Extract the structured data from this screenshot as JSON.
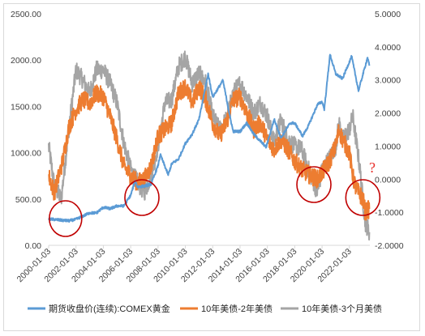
{
  "chart_data": {
    "type": "line",
    "title": "",
    "xlabel": "",
    "ylabel": "",
    "x_tick_labels": [
      "2000-01-03",
      "2002-01-03",
      "2004-01-03",
      "2006-01-03",
      "2008-01-03",
      "2010-01-03",
      "2012-01-03",
      "2014-01-03",
      "2016-01-03",
      "2018-01-03",
      "2020-01-03",
      "2022-01-03"
    ],
    "y_left": {
      "lim": [
        0,
        2500
      ],
      "tick_labels": [
        "0.00",
        "500.00",
        "1000.00",
        "1500.00",
        "2000.00",
        "2500.00"
      ]
    },
    "y_right": {
      "lim": [
        -2,
        5
      ],
      "tick_labels": [
        "-2.0000",
        "-1.0000",
        "0.0000",
        "1.0000",
        "2.0000",
        "3.0000",
        "4.0000",
        "5.0000"
      ]
    },
    "grid": false,
    "legend_position": "bottom",
    "series": [
      {
        "name": "期货收盘价(连续):COMEX黄金",
        "axis": "left",
        "color": "#5b9bd5",
        "points": [
          [
            "2000-01-03",
            285
          ],
          [
            "2001-01-03",
            270
          ],
          [
            "2001-07-03",
            265
          ],
          [
            "2002-01-03",
            280
          ],
          [
            "2002-07-03",
            315
          ],
          [
            "2003-01-03",
            350
          ],
          [
            "2003-07-03",
            350
          ],
          [
            "2004-01-03",
            410
          ],
          [
            "2004-07-03",
            395
          ],
          [
            "2005-01-03",
            425
          ],
          [
            "2005-07-03",
            425
          ],
          [
            "2006-01-03",
            540
          ],
          [
            "2006-05-03",
            700
          ],
          [
            "2006-07-03",
            630
          ],
          [
            "2007-01-03",
            640
          ],
          [
            "2007-07-03",
            660
          ],
          [
            "2008-01-03",
            860
          ],
          [
            "2008-03-03",
            980
          ],
          [
            "2008-10-03",
            760
          ],
          [
            "2009-01-03",
            880
          ],
          [
            "2009-07-03",
            930
          ],
          [
            "2010-01-03",
            1100
          ],
          [
            "2010-07-03",
            1200
          ],
          [
            "2011-01-03",
            1360
          ],
          [
            "2011-09-03",
            1850
          ],
          [
            "2012-01-03",
            1600
          ],
          [
            "2012-10-03",
            1780
          ],
          [
            "2013-04-03",
            1400
          ],
          [
            "2013-07-03",
            1230
          ],
          [
            "2014-01-03",
            1230
          ],
          [
            "2014-07-03",
            1320
          ],
          [
            "2015-01-03",
            1200
          ],
          [
            "2015-12-03",
            1060
          ],
          [
            "2016-07-03",
            1360
          ],
          [
            "2017-01-03",
            1160
          ],
          [
            "2017-09-03",
            1320
          ],
          [
            "2018-01-03",
            1320
          ],
          [
            "2018-08-03",
            1180
          ],
          [
            "2019-01-03",
            1290
          ],
          [
            "2019-09-03",
            1520
          ],
          [
            "2020-01-03",
            1550
          ],
          [
            "2020-03-03",
            1470
          ],
          [
            "2020-08-03",
            2060
          ],
          [
            "2021-01-03",
            1850
          ],
          [
            "2021-07-03",
            1800
          ],
          [
            "2022-03-03",
            2040
          ],
          [
            "2022-09-03",
            1670
          ],
          [
            "2023-01-03",
            1850
          ],
          [
            "2023-05-03",
            2030
          ],
          [
            "2023-06-20",
            1940
          ]
        ]
      },
      {
        "name": "10年美债-2年美债",
        "axis": "right",
        "color": "#ed7d31",
        "points": [
          [
            "2000-01-03",
            0.1
          ],
          [
            "2000-06-03",
            -0.4
          ],
          [
            "2001-01-03",
            0.5
          ],
          [
            "2001-07-03",
            1.6
          ],
          [
            "2002-01-03",
            2.1
          ],
          [
            "2002-07-03",
            2.4
          ],
          [
            "2003-01-03",
            2.3
          ],
          [
            "2003-07-03",
            2.6
          ],
          [
            "2004-01-03",
            2.5
          ],
          [
            "2004-07-03",
            1.9
          ],
          [
            "2005-01-03",
            1.2
          ],
          [
            "2005-07-03",
            0.4
          ],
          [
            "2006-01-03",
            0.1
          ],
          [
            "2006-07-03",
            -0.1
          ],
          [
            "2007-01-03",
            0.0
          ],
          [
            "2007-07-03",
            0.4
          ],
          [
            "2008-01-03",
            1.3
          ],
          [
            "2008-07-03",
            1.5
          ],
          [
            "2009-01-03",
            1.7
          ],
          [
            "2009-07-03",
            2.6
          ],
          [
            "2010-01-03",
            2.8
          ],
          [
            "2010-07-03",
            2.3
          ],
          [
            "2011-01-03",
            2.8
          ],
          [
            "2011-07-03",
            2.4
          ],
          [
            "2012-01-03",
            1.7
          ],
          [
            "2012-07-03",
            1.3
          ],
          [
            "2013-01-03",
            1.7
          ],
          [
            "2013-07-03",
            2.4
          ],
          [
            "2014-01-03",
            2.5
          ],
          [
            "2014-07-03",
            2.0
          ],
          [
            "2015-01-03",
            1.5
          ],
          [
            "2015-07-03",
            1.7
          ],
          [
            "2016-01-03",
            1.2
          ],
          [
            "2016-07-03",
            0.9
          ],
          [
            "2017-01-03",
            1.2
          ],
          [
            "2017-07-03",
            0.9
          ],
          [
            "2018-01-03",
            0.55
          ],
          [
            "2018-07-03",
            0.3
          ],
          [
            "2019-01-03",
            0.15
          ],
          [
            "2019-09-03",
            0.0
          ],
          [
            "2020-01-03",
            0.2
          ],
          [
            "2020-07-03",
            0.5
          ],
          [
            "2021-01-03",
            1.0
          ],
          [
            "2021-04-03",
            1.5
          ],
          [
            "2021-07-03",
            1.2
          ],
          [
            "2022-01-03",
            0.8
          ],
          [
            "2022-04-03",
            0.1
          ],
          [
            "2022-07-03",
            -0.3
          ],
          [
            "2023-01-03",
            -0.6
          ],
          [
            "2023-03-03",
            -1.0
          ],
          [
            "2023-06-20",
            -0.9
          ]
        ]
      },
      {
        "name": "10年美债-3个月美债",
        "axis": "right",
        "color": "#a5a5a5",
        "points": [
          [
            "2000-01-03",
            1.0
          ],
          [
            "2000-06-03",
            -0.2
          ],
          [
            "2000-12-03",
            -0.6
          ],
          [
            "2001-07-03",
            1.6
          ],
          [
            "2002-01-03",
            3.3
          ],
          [
            "2002-07-03",
            3.0
          ],
          [
            "2003-01-03",
            2.6
          ],
          [
            "2003-07-03",
            3.3
          ],
          [
            "2004-01-03",
            3.3
          ],
          [
            "2004-07-03",
            2.9
          ],
          [
            "2005-01-03",
            2.3
          ],
          [
            "2005-07-03",
            1.1
          ],
          [
            "2006-01-03",
            0.3
          ],
          [
            "2006-07-03",
            -0.1
          ],
          [
            "2007-01-03",
            -0.4
          ],
          [
            "2007-07-03",
            0.1
          ],
          [
            "2008-01-03",
            1.0
          ],
          [
            "2008-07-03",
            2.3
          ],
          [
            "2009-01-03",
            2.4
          ],
          [
            "2009-07-03",
            3.4
          ],
          [
            "2010-01-03",
            3.7
          ],
          [
            "2010-07-03",
            2.9
          ],
          [
            "2011-01-03",
            3.2
          ],
          [
            "2011-07-03",
            2.9
          ],
          [
            "2012-01-03",
            1.9
          ],
          [
            "2012-07-03",
            1.5
          ],
          [
            "2013-01-03",
            1.8
          ],
          [
            "2013-07-03",
            2.6
          ],
          [
            "2014-01-03",
            2.9
          ],
          [
            "2014-07-03",
            2.5
          ],
          [
            "2015-01-03",
            2.0
          ],
          [
            "2015-07-03",
            2.3
          ],
          [
            "2016-01-03",
            1.9
          ],
          [
            "2016-07-03",
            1.1
          ],
          [
            "2017-01-03",
            1.8
          ],
          [
            "2017-07-03",
            1.2
          ],
          [
            "2018-01-03",
            1.0
          ],
          [
            "2018-07-03",
            0.9
          ],
          [
            "2019-01-03",
            0.3
          ],
          [
            "2019-09-03",
            -0.4
          ],
          [
            "2020-01-03",
            0.3
          ],
          [
            "2020-07-03",
            0.6
          ],
          [
            "2021-01-03",
            1.0
          ],
          [
            "2021-04-03",
            1.7
          ],
          [
            "2021-07-03",
            1.2
          ],
          [
            "2022-01-03",
            1.5
          ],
          [
            "2022-04-03",
            1.9
          ],
          [
            "2022-10-03",
            0.4
          ],
          [
            "2023-01-03",
            -0.7
          ],
          [
            "2023-03-03",
            -1.3
          ],
          [
            "2023-06-20",
            -1.6
          ]
        ]
      }
    ],
    "annotations": {
      "question_mark": "?",
      "circles_around": [
        "2001-06-03",
        "2007-01-03",
        "2019-08-03",
        "2023-03-03"
      ]
    }
  }
}
